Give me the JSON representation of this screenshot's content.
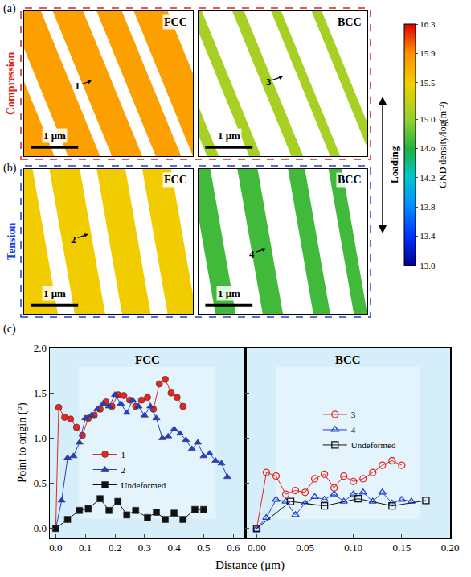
{
  "maps": {
    "colorbar": {
      "title": "GND density/log(m⁻²)",
      "range": [
        13.0,
        16.3
      ],
      "ticks": [
        {
          "value": 13,
          "label": "13.0"
        },
        13.4,
        13.8,
        14.2,
        14.6,
        {
          "value": 15,
          "label": "15.0"
        },
        15.5,
        15.9,
        16.3
      ]
    },
    "loading": "Loading",
    "scale_bar": "1 μm",
    "rows": [
      {
        "label": "(a)",
        "name": "Compression",
        "color": "#e02020",
        "panels": [
          {
            "title": "FCC",
            "gnd_density": 15.8,
            "line_label": "1"
          },
          {
            "title": "BCC",
            "gnd_density": 15.1,
            "line_label": "3"
          }
        ]
      },
      {
        "label": "(b)",
        "name": "Tension",
        "color": "#1f3fd6",
        "panels": [
          {
            "title": "FCC",
            "gnd_density": 15.5,
            "line_label": "2"
          },
          {
            "title": "BCC",
            "gnd_density": 14.7,
            "line_label": "4"
          }
        ]
      }
    ]
  },
  "panel_c": {
    "label": "(c)",
    "x_label": "Distance (μm)"
  },
  "chart_data": [
    {
      "type": "line",
      "title": "FCC",
      "xlim": [
        -0.02,
        0.64
      ],
      "xticks": [
        {
          "value": 0,
          "label": "0.0"
        },
        0.1,
        0.2,
        0.3,
        0.4,
        0.5,
        0.6
      ],
      "ylim": [
        -0.1,
        2.0
      ],
      "yticks": [
        {
          "value": 0,
          "label": "0.0"
        },
        0.5,
        {
          "value": 1,
          "label": "1.0"
        },
        1.5,
        {
          "value": 2,
          "label": "2.0"
        }
      ],
      "y_label": "Point to origin (°)",
      "grid": false,
      "legend": "lower left",
      "series": [
        {
          "name": "1",
          "color": "#e8261f",
          "marker": "circle",
          "x": [
            0,
            0.01,
            0.03,
            0.05,
            0.07,
            0.09,
            0.11,
            0.13,
            0.15,
            0.17,
            0.19,
            0.21,
            0.23,
            0.25,
            0.27,
            0.29,
            0.31,
            0.33,
            0.35,
            0.37,
            0.39,
            0.41,
            0.43
          ],
          "values": [
            0,
            1.34,
            1.23,
            1.21,
            1.12,
            1.03,
            1.22,
            1.25,
            1.32,
            1.4,
            1.35,
            1.48,
            1.47,
            1.42,
            1.35,
            1.42,
            1.45,
            1.32,
            1.6,
            1.65,
            1.5,
            1.45,
            1.35
          ]
        },
        {
          "name": "2",
          "color": "#1f3fd6",
          "marker": "triangle-up",
          "x": [
            0,
            0.02,
            0.04,
            0.06,
            0.08,
            0.1,
            0.12,
            0.14,
            0.16,
            0.18,
            0.2,
            0.22,
            0.24,
            0.26,
            0.28,
            0.3,
            0.32,
            0.34,
            0.36,
            0.38,
            0.4,
            0.42,
            0.44,
            0.46,
            0.48,
            0.5,
            0.52,
            0.54,
            0.56,
            0.58
          ],
          "values": [
            0,
            0.31,
            0.78,
            0.8,
            0.95,
            1.22,
            1.25,
            1.32,
            1.38,
            1.35,
            1.48,
            1.38,
            1.28,
            1.42,
            1.35,
            1.25,
            1.35,
            1.22,
            1.0,
            1.02,
            1.1,
            1.05,
            0.98,
            0.88,
            0.95,
            0.8,
            0.83,
            0.75,
            0.72,
            0.57
          ]
        },
        {
          "name": "Undeformed",
          "color": "#111111",
          "marker": "square",
          "x": [
            0,
            0.04,
            0.08,
            0.11,
            0.15,
            0.18,
            0.21,
            0.24,
            0.27,
            0.31,
            0.34,
            0.37,
            0.4,
            0.43,
            0.47,
            0.5
          ],
          "values": [
            0,
            0.1,
            0.2,
            0.22,
            0.33,
            0.2,
            0.3,
            0.15,
            0.2,
            0.12,
            0.18,
            0.1,
            0.17,
            0.1,
            0.21,
            0.21
          ]
        }
      ]
    },
    {
      "type": "line",
      "title": "BCC",
      "xlim": [
        -0.012,
        0.2
      ],
      "xticks": [
        {
          "value": 0,
          "label": "0.00"
        },
        0.05,
        {
          "value": 0.1,
          "label": "0.10"
        },
        0.15,
        {
          "value": 0.2,
          "label": "0.20"
        }
      ],
      "ylim": [
        -0.1,
        2.0
      ],
      "yticks": [
        {
          "value": 0,
          "label": "0.0"
        },
        0.5,
        {
          "value": 1,
          "label": "1.0"
        },
        1.5,
        {
          "value": 2,
          "label": "2.0"
        }
      ],
      "tick_labels": "x",
      "grid": false,
      "legend": "center",
      "series": [
        {
          "name": "3",
          "color": "#e8261f",
          "marker": "circle-open",
          "x": [
            0,
            0.01,
            0.02,
            0.03,
            0.04,
            0.05,
            0.06,
            0.07,
            0.08,
            0.09,
            0.1,
            0.11,
            0.12,
            0.13,
            0.14,
            0.15
          ],
          "values": [
            0,
            0.62,
            0.58,
            0.38,
            0.42,
            0.4,
            0.55,
            0.6,
            0.45,
            0.58,
            0.52,
            0.55,
            0.62,
            0.7,
            0.75,
            0.7
          ]
        },
        {
          "name": "4",
          "color": "#1f3fd6",
          "marker": "triangle-up-open",
          "x": [
            0,
            0.01,
            0.02,
            0.03,
            0.04,
            0.05,
            0.06,
            0.07,
            0.08,
            0.09,
            0.1,
            0.11,
            0.12,
            0.13,
            0.14,
            0.15,
            0.16
          ],
          "values": [
            0,
            0.12,
            0.32,
            0.3,
            0.15,
            0.28,
            0.35,
            0.32,
            0.38,
            0.3,
            0.38,
            0.4,
            0.3,
            0.4,
            0.28,
            0.32,
            0.3
          ]
        },
        {
          "name": "Undeformed",
          "color": "#111111",
          "marker": "square-open",
          "x": [
            0,
            0.035,
            0.07,
            0.105,
            0.14,
            0.175
          ],
          "values": [
            0,
            0.3,
            0.25,
            0.33,
            0.25,
            0.31
          ]
        }
      ]
    }
  ]
}
